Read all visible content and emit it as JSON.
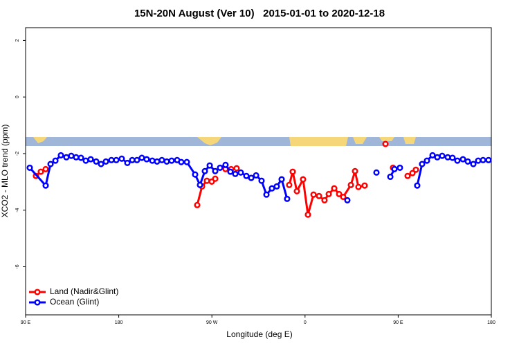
{
  "chart_data": {
    "type": "line",
    "title": "15N-20N August (Ver 10)   2015-01-01 to 2020-12-18",
    "xlabel": "Longitude (deg E)",
    "ylabel": "XCO2 - MLO trend (ppm)",
    "xlim": [
      90,
      540
    ],
    "ylim": [
      -7.7,
      2.45
    ],
    "xticks": [
      {
        "value": 90,
        "label": "90 E"
      },
      {
        "value": 180,
        "label": "180"
      },
      {
        "value": 270,
        "label": "90 W"
      },
      {
        "value": 360,
        "label": "0"
      },
      {
        "value": 450,
        "label": "90 E"
      },
      {
        "value": 540,
        "label": "180"
      }
    ],
    "yticks": [
      2,
      0,
      -2,
      -4,
      -6
    ],
    "legend": "lower left",
    "series": [
      {
        "name": "Land (Nadir&Glint)",
        "color": "#ff0000",
        "x": [
          100.0,
          104.7,
          109.4,
          null,
          255.8,
          260.5,
          265.2,
          269.9,
          273.2,
          null,
          283.2,
          288.6,
          293.9,
          null,
          344.7,
          348.1,
          352.1,
          358.1,
          362.8,
          368.2,
          373.5,
          378.8,
          382.9,
          388.2,
          392.9,
          396.9,
          404.3,
          408.3,
          411.6,
          417.6,
          null,
          437.7,
          null,
          445.0,
          null,
          459.1,
          463.8,
          467.1
        ],
        "values": [
          -2.79,
          -2.64,
          -2.55,
          null,
          -3.82,
          -3.16,
          -2.96,
          -2.99,
          -2.89,
          null,
          -2.55,
          -2.55,
          -2.52,
          null,
          -3.11,
          -2.64,
          -3.33,
          -2.91,
          -4.16,
          -3.45,
          -3.5,
          -3.65,
          -3.43,
          -3.23,
          -3.43,
          -3.53,
          -3.11,
          -2.62,
          -3.18,
          -3.13,
          null,
          -1.66,
          null,
          -2.5,
          null,
          -2.79,
          -2.69,
          -2.57
        ]
      },
      {
        "name": "Ocean (Glint)",
        "color": "#0000ff",
        "x": [
          94.0,
          109.4,
          114.1,
          118.8,
          124.1,
          129.4,
          134.1,
          138.8,
          143.5,
          148.2,
          152.9,
          158.2,
          162.9,
          167.6,
          172.9,
          177.6,
          182.9,
          188.3,
          193.0,
          197.6,
          202.3,
          207.0,
          212.4,
          217.0,
          221.7,
          226.4,
          231.1,
          236.4,
          240.4,
          245.8,
          253.8,
          258.5,
          263.2,
          267.9,
          273.2,
          277.9,
          283.2,
          287.9,
          292.6,
          297.9,
          303.3,
          308.0,
          312.7,
          318.0,
          322.7,
          328.0,
          332.7,
          337.4,
          342.7,
          null,
          400.9,
          null,
          429.0,
          null,
          442.4,
          446.4,
          451.7,
          null,
          468.4,
          473.1,
          477.8,
          483.2,
          487.8,
          492.5,
          497.9,
          502.5,
          507.2,
          512.6,
          517.3,
          522.6,
          527.3,
          532.0,
          537.3
        ],
        "values": [
          -2.5,
          -3.13,
          -2.37,
          -2.25,
          -2.06,
          -2.13,
          -2.08,
          -2.13,
          -2.15,
          -2.25,
          -2.2,
          -2.28,
          -2.37,
          -2.28,
          -2.23,
          -2.23,
          -2.18,
          -2.33,
          -2.23,
          -2.23,
          -2.15,
          -2.2,
          -2.25,
          -2.28,
          -2.23,
          -2.28,
          -2.25,
          -2.23,
          -2.3,
          -2.3,
          -2.74,
          -3.11,
          -2.62,
          -2.42,
          -2.62,
          -2.5,
          -2.4,
          -2.64,
          -2.72,
          -2.67,
          -2.79,
          -2.86,
          -2.77,
          -2.96,
          -3.45,
          -3.23,
          -3.16,
          -2.91,
          -3.6,
          null,
          -3.65,
          null,
          -2.67,
          null,
          -2.82,
          -2.55,
          -2.5,
          null,
          -3.13,
          -2.37,
          -2.25,
          -2.06,
          -2.13,
          -2.08,
          -2.13,
          -2.15,
          -2.25,
          -2.2,
          -2.28,
          -2.37,
          -2.25,
          -2.23,
          -2.23
        ]
      }
    ]
  }
}
